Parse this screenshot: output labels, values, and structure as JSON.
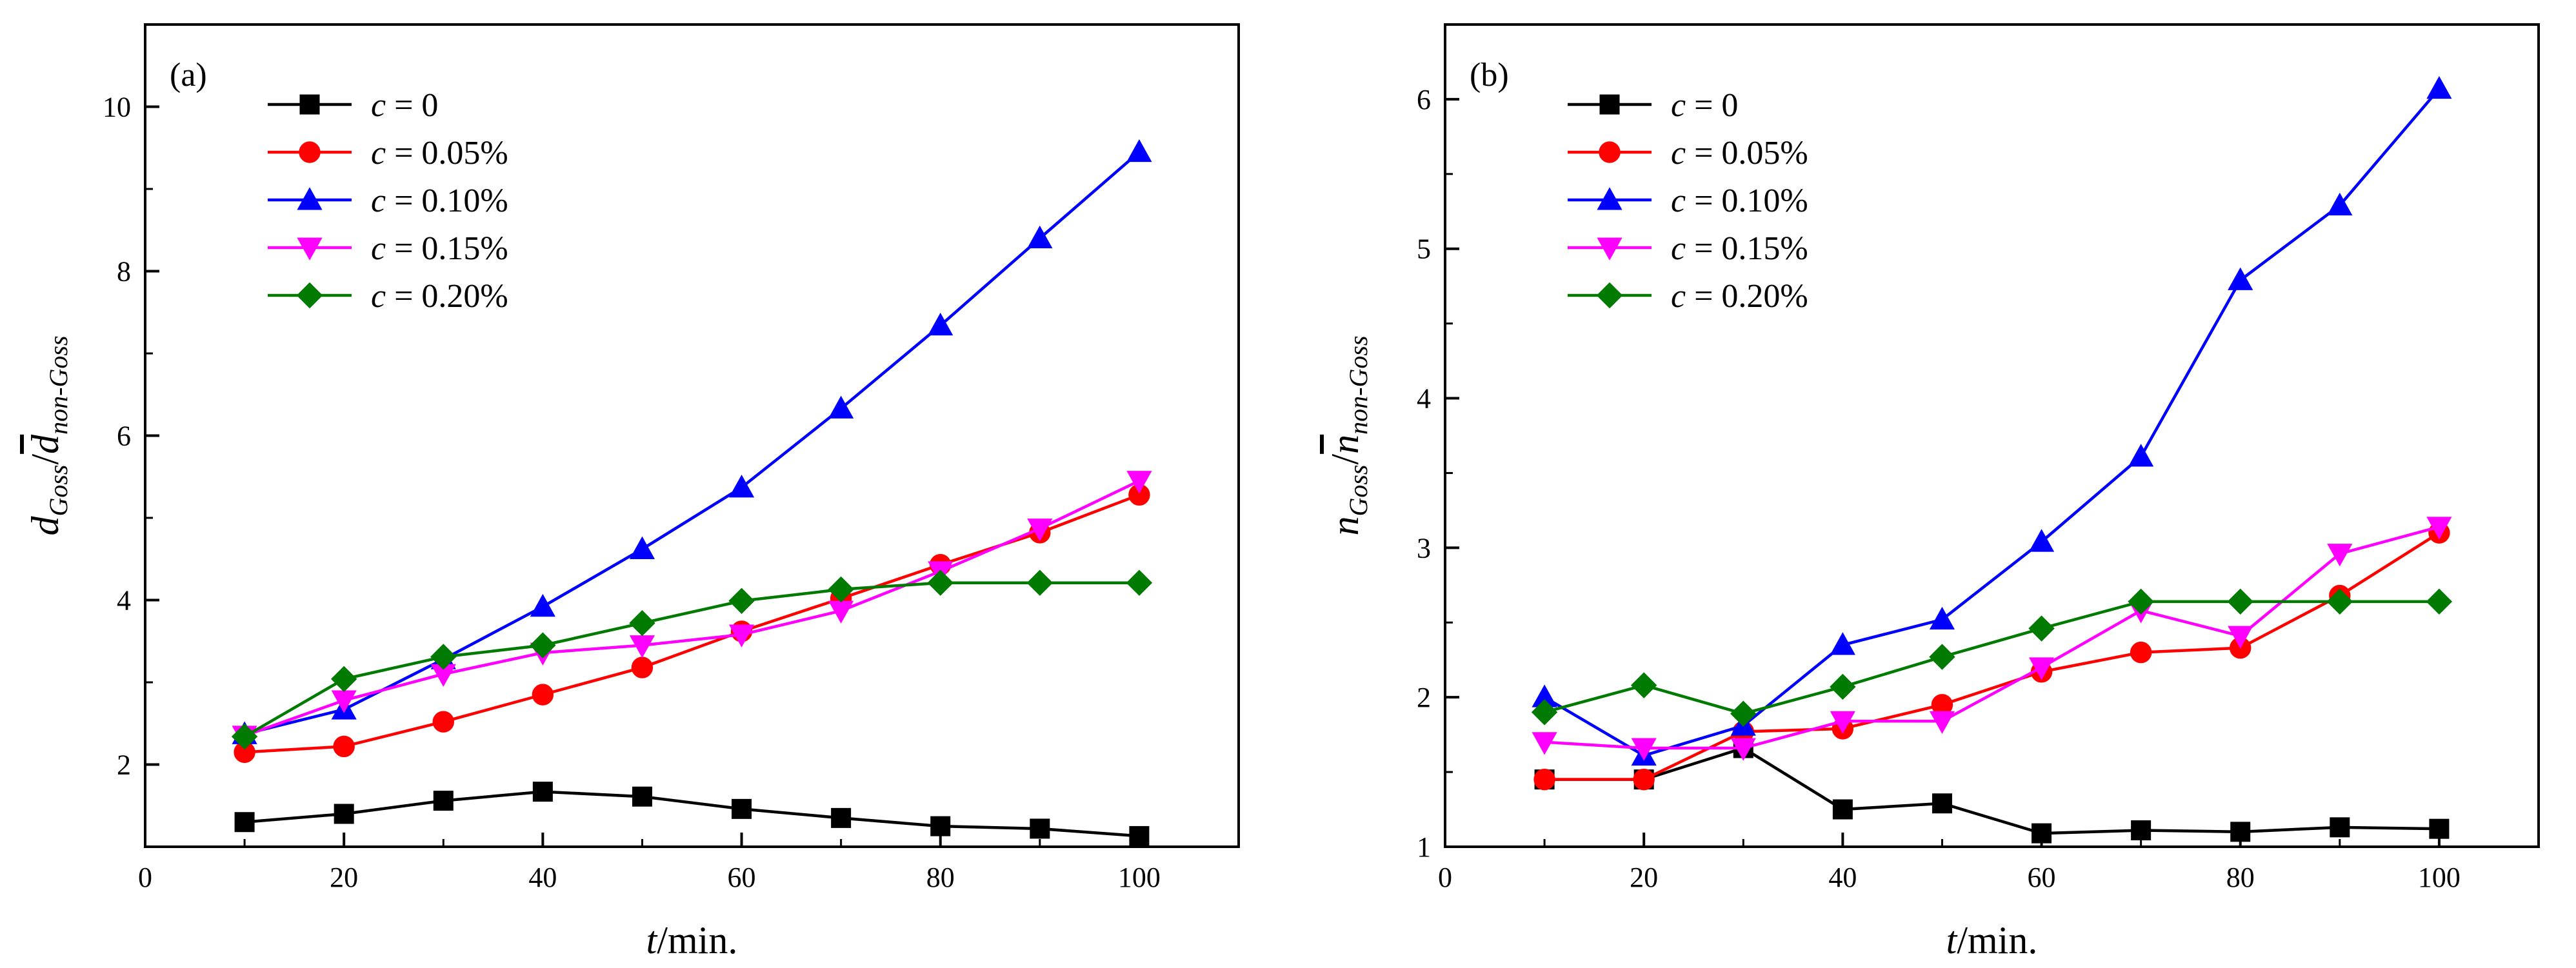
{
  "chart_data": [
    {
      "panel_label": "(a)",
      "type": "line",
      "xlabel_var": "t",
      "xlabel_unit": "/min.",
      "ylabel_main": "d",
      "ylabel_sub1": "Goss",
      "ylabel_sep": "/",
      "ylabel_bar_var": "d",
      "ylabel_sub2": "non-Goss",
      "xlim": [
        0,
        110
      ],
      "ylim": [
        1,
        11
      ],
      "xticks": [
        0,
        20,
        40,
        60,
        80,
        100
      ],
      "yticks": [
        2,
        4,
        6,
        8,
        10
      ],
      "xtick_labels": [
        "0",
        "20",
        "40",
        "60",
        "80",
        "100"
      ],
      "ytick_labels": [
        "2",
        "4",
        "6",
        "8",
        "10"
      ],
      "legend_position": "top-left",
      "x": [
        10,
        20,
        30,
        40,
        50,
        60,
        70,
        80,
        90,
        100
      ],
      "series": [
        {
          "name": "c = 0",
          "var": "c",
          "suffix": " = 0",
          "color": "#000000",
          "marker": "square",
          "values": [
            1.3,
            1.4,
            1.56,
            1.67,
            1.61,
            1.46,
            1.35,
            1.25,
            1.22,
            1.13
          ]
        },
        {
          "name": "c = 0.05%",
          "var": "c",
          "suffix": " = 0.05%",
          "color": "#ff0000",
          "marker": "circle",
          "values": [
            2.15,
            2.22,
            2.52,
            2.85,
            3.18,
            3.62,
            4.02,
            4.43,
            4.82,
            5.28
          ]
        },
        {
          "name": "c = 0.10%",
          "var": "c",
          "suffix": " = 0.10%",
          "color": "#0000ff",
          "marker": "triangle-up",
          "values": [
            2.37,
            2.67,
            3.28,
            3.92,
            4.62,
            5.37,
            6.33,
            7.34,
            8.4,
            9.45
          ]
        },
        {
          "name": "c = 0.15%",
          "var": "c",
          "suffix": " = 0.15%",
          "color": "#ff00ff",
          "marker": "triangle-down",
          "values": [
            2.35,
            2.78,
            3.1,
            3.36,
            3.45,
            3.58,
            3.87,
            4.35,
            4.87,
            5.45
          ]
        },
        {
          "name": "c = 0.20%",
          "var": "c",
          "suffix": " = 0.20%",
          "color": "#007a00",
          "marker": "diamond",
          "values": [
            2.34,
            3.04,
            3.31,
            3.45,
            3.72,
            3.99,
            4.13,
            4.21,
            4.21,
            4.21
          ]
        }
      ]
    },
    {
      "panel_label": "(b)",
      "type": "line",
      "xlabel_var": "t",
      "xlabel_unit": "/min.",
      "ylabel_main": "n",
      "ylabel_sub1": "Goss",
      "ylabel_sep": "/",
      "ylabel_bar_var": "n",
      "ylabel_sub2": "non-Goss",
      "xlim": [
        0,
        110
      ],
      "ylim": [
        1,
        6.5
      ],
      "xticks": [
        0,
        20,
        40,
        60,
        80,
        100
      ],
      "yticks": [
        1,
        2,
        3,
        4,
        5,
        6
      ],
      "xtick_labels": [
        "0",
        "20",
        "40",
        "60",
        "80",
        "100"
      ],
      "ytick_labels": [
        "1",
        "2",
        "3",
        "4",
        "5",
        "6"
      ],
      "legend_position": "top-left",
      "x": [
        10,
        20,
        30,
        40,
        50,
        60,
        70,
        80,
        90,
        100
      ],
      "series": [
        {
          "name": "c = 0",
          "var": "c",
          "suffix": " = 0",
          "color": "#000000",
          "marker": "square",
          "values": [
            1.45,
            1.45,
            1.66,
            1.25,
            1.29,
            1.09,
            1.11,
            1.1,
            1.13,
            1.12
          ]
        },
        {
          "name": "c = 0.05%",
          "var": "c",
          "suffix": " = 0.05%",
          "color": "#ff0000",
          "marker": "circle",
          "values": [
            1.45,
            1.45,
            1.77,
            1.79,
            1.95,
            2.17,
            2.3,
            2.33,
            2.68,
            3.1
          ]
        },
        {
          "name": "c = 0.10%",
          "var": "c",
          "suffix": " = 0.10%",
          "color": "#0000ff",
          "marker": "triangle-up",
          "values": [
            2.0,
            1.61,
            1.81,
            2.35,
            2.52,
            3.04,
            3.61,
            4.79,
            5.29,
            6.07
          ]
        },
        {
          "name": "c = 0.15%",
          "var": "c",
          "suffix": " = 0.15%",
          "color": "#ff00ff",
          "marker": "triangle-down",
          "values": [
            1.7,
            1.66,
            1.66,
            1.84,
            1.84,
            2.2,
            2.58,
            2.41,
            2.96,
            3.14
          ]
        },
        {
          "name": "c = 0.20%",
          "var": "c",
          "suffix": " = 0.20%",
          "color": "#007a00",
          "marker": "diamond",
          "values": [
            1.9,
            2.08,
            1.89,
            2.07,
            2.27,
            2.46,
            2.64,
            2.64,
            2.64,
            2.64
          ]
        }
      ]
    }
  ]
}
